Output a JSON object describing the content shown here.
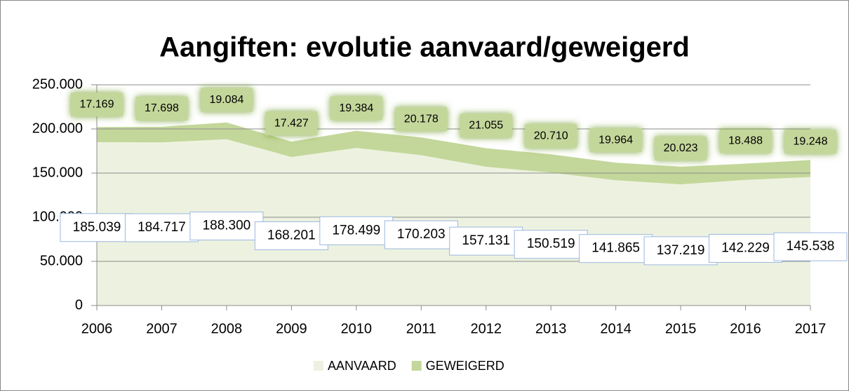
{
  "chart_data": {
    "type": "stacked-area",
    "title": "Aangiften: evolutie aanvaard/geweigerd",
    "categories": [
      "2006",
      "2007",
      "2008",
      "2009",
      "2010",
      "2011",
      "2012",
      "2013",
      "2014",
      "2015",
      "2016",
      "2017"
    ],
    "series": [
      {
        "name": "AANVAARD",
        "color": "#edf2e0",
        "values": [
          185039,
          184717,
          188300,
          168201,
          178499,
          170203,
          157131,
          150519,
          141865,
          137219,
          142229,
          145538
        ],
        "value_labels": [
          "185.039",
          "184.717",
          "188.300",
          "168.201",
          "178.499",
          "170.203",
          "157.131",
          "150.519",
          "141.865",
          "137.219",
          "142.229",
          "145.538"
        ]
      },
      {
        "name": "GEWEIGERD",
        "color": "#c4d79b",
        "values": [
          17169,
          17698,
          19084,
          17427,
          19384,
          20178,
          21055,
          20710,
          19964,
          20023,
          18488,
          19248
        ],
        "value_labels": [
          "17.169",
          "17.698",
          "19.084",
          "17.427",
          "19.384",
          "20.178",
          "21.055",
          "20.710",
          "19.964",
          "20.023",
          "18.488",
          "19.248"
        ]
      }
    ],
    "ylim": [
      0,
      250000
    ],
    "yticks": [
      0,
      {
        "value": 50000,
        "label": "50.000"
      },
      {
        "value": 100000,
        "label": "100.000"
      },
      {
        "value": 150000,
        "label": "150.000"
      },
      {
        "value": 200000,
        "label": "200.000"
      },
      {
        "value": 250000,
        "label": "250.000"
      }
    ],
    "grid": true,
    "legend": "bottom"
  }
}
